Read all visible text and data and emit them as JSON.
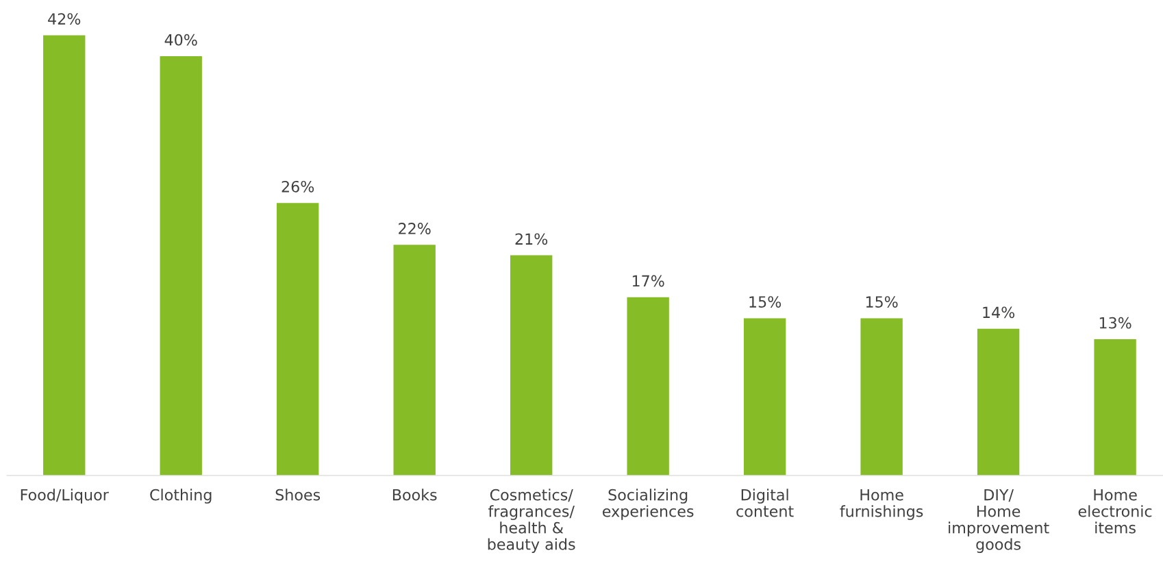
{
  "chart_data": {
    "type": "bar",
    "categories": [
      "Food/Liquor",
      "Clothing",
      "Shoes",
      "Books",
      "Cosmetics/\nfragrances/\nhealth &\nbeauty aids",
      "Socializing\nexperiences",
      "Digital\ncontent",
      "Home\nfurnishings",
      "DIY/\nHome\nimprovement\ngoods",
      "Home\nelectronic\nitems"
    ],
    "values": [
      42,
      40,
      26,
      22,
      21,
      17,
      15,
      15,
      14,
      13
    ],
    "color": "#86bc25",
    "value_labels": [
      "42%",
      "40%",
      "26%",
      "22%",
      "21%",
      "17%",
      "15%",
      "15%",
      "14%",
      "13%"
    ],
    "grid": false,
    "legend": false
  }
}
